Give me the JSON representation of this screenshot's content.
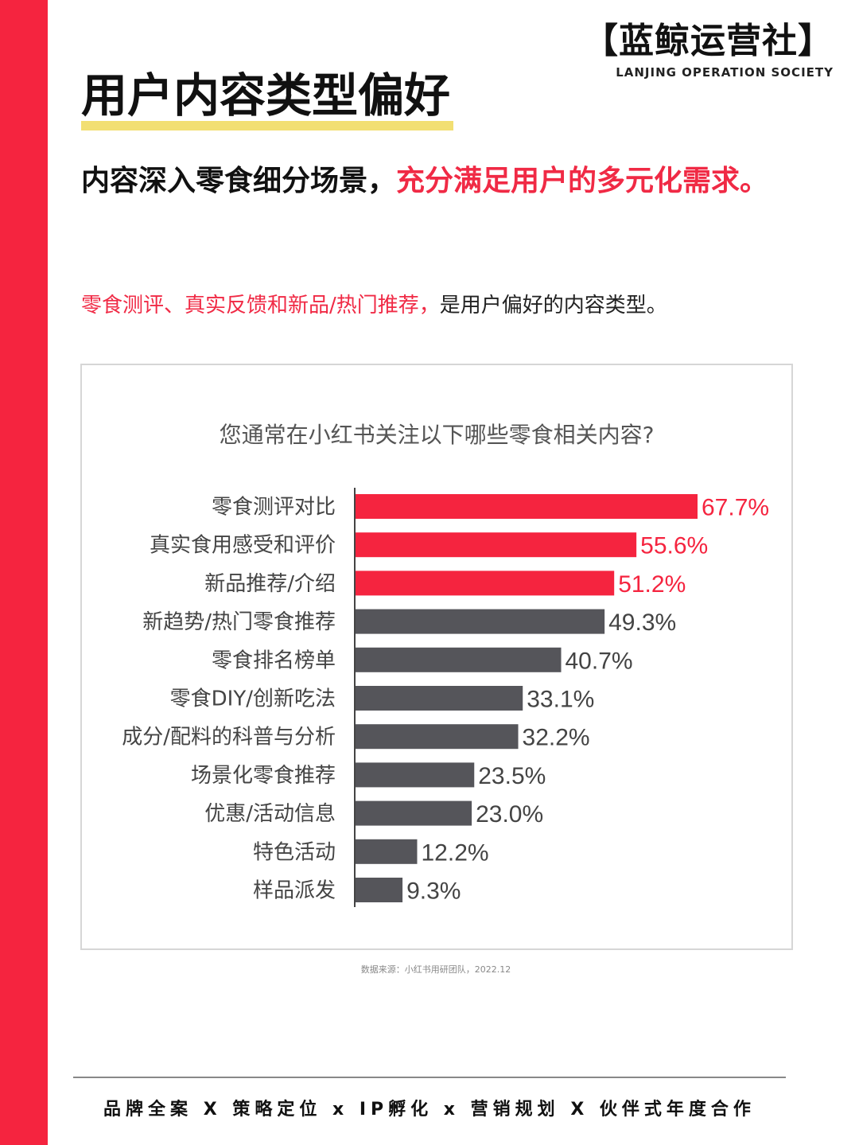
{
  "brand": {
    "name": "【蓝鲸运营社】",
    "subtitle": "LANJING OPERATION SOCIETY"
  },
  "page_title": "用户内容类型偏好",
  "headline": {
    "black_part": "内容深入零食细分场景，",
    "red_part": "充分满足用户的多元化需求。"
  },
  "subline": {
    "red_part": "零食测评、真实反馈和新品/热门推荐，",
    "black_part": "是用户偏好的内容类型。"
  },
  "colors": {
    "accent_red": "#f5243f",
    "bar_gray": "#55555a",
    "highlight_yellow": "#f2df72"
  },
  "chart_data": {
    "type": "bar",
    "orientation": "horizontal",
    "title": "您通常在小红书关注以下哪些零食相关内容?",
    "categories": [
      "零食测评对比",
      "真实食用感受和评价",
      "新品推荐/介绍",
      "新趋势/热门零食推荐",
      "零食排名榜单",
      "零食DIY/创新吃法",
      "成分/配料的科普与分析",
      "场景化零食推荐",
      "优惠/活动信息",
      "特色活动",
      "样品派发"
    ],
    "values": [
      67.7,
      55.6,
      51.2,
      49.3,
      40.7,
      33.1,
      32.2,
      23.5,
      23.0,
      12.2,
      9.3
    ],
    "value_labels": [
      "67.7%",
      "55.6%",
      "51.2%",
      "49.3%",
      "40.7%",
      "33.1%",
      "32.2%",
      "23.5%",
      "23.0%",
      "12.2%",
      "9.3%"
    ],
    "highlighted_count": 3,
    "unit": "%",
    "xlim": [
      0,
      70
    ],
    "grid": false,
    "legend": "none"
  },
  "source": "数据来源：小红书用研团队，2022.12",
  "footer": "品牌全案 X 策略定位 x IP孵化 x 营销规划 X 伙伴式年度合作"
}
